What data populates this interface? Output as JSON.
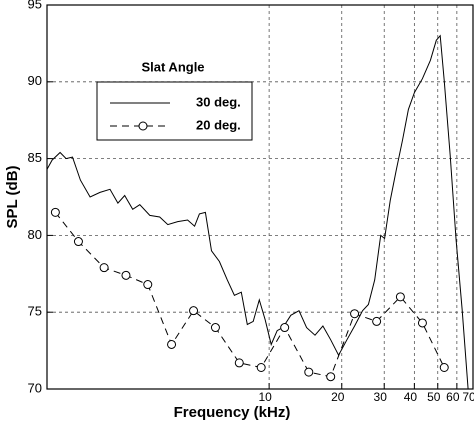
{
  "chart_data": {
    "type": "line",
    "xlabel": "Frequency (kHz)",
    "ylabel": "SPL (dB)",
    "legend_title": "Slat Angle",
    "xscale": "log",
    "grid": true,
    "legend_position": "upper left",
    "xlim": [
      1.2,
      70
    ],
    "xticks": [
      10,
      20,
      30,
      40,
      50,
      60,
      70
    ],
    "ylim": [
      70,
      95
    ],
    "yticks": [
      70,
      75,
      80,
      85,
      90,
      95
    ],
    "series": [
      {
        "name": "30 deg.",
        "color": "#000000",
        "style": "solid",
        "x": [
          1.2,
          1.26,
          1.36,
          1.44,
          1.53,
          1.65,
          1.81,
          1.99,
          2.19,
          2.36,
          2.52,
          2.72,
          2.91,
          3.2,
          3.52,
          3.8,
          4.18,
          4.59,
          4.91,
          5.14,
          5.44,
          5.77,
          6.22,
          6.71,
          7.18,
          7.67,
          8.12,
          8.59,
          9.1,
          9.63,
          10.2,
          10.8,
          11.4,
          12.3,
          13.3,
          14.3,
          15.5,
          16.7,
          18.0,
          19.4,
          21.0,
          22.6,
          24.4,
          25.8,
          27.4,
          29.0,
          30.1,
          31.8,
          33.7,
          35.7,
          37.8,
          40.0,
          43.2,
          46.6,
          49.3,
          51.2,
          53.2,
          56.3,
          59.6,
          63.1,
          66.8
        ],
        "values": [
          84.3,
          84.9,
          85.4,
          85.0,
          85.1,
          83.6,
          82.5,
          82.8,
          83.0,
          82.1,
          82.6,
          81.7,
          82.0,
          81.3,
          81.2,
          80.7,
          80.9,
          81.0,
          80.6,
          81.4,
          81.5,
          79.0,
          78.3,
          77.1,
          76.1,
          76.3,
          74.2,
          74.4,
          75.8,
          74.5,
          72.9,
          73.8,
          74.0,
          74.8,
          75.1,
          74.0,
          73.5,
          74.1,
          73.2,
          72.2,
          73.2,
          74.1,
          75.1,
          75.5,
          77.1,
          80.0,
          79.8,
          82.3,
          84.3,
          86.2,
          88.2,
          89.3,
          90.2,
          91.4,
          92.7,
          93.0,
          90.1,
          85.2,
          79.7,
          75.2,
          70.0
        ]
      },
      {
        "name": "20 deg.",
        "color": "#000000",
        "style": "dashed",
        "marker": "circle",
        "x": [
          1.3,
          1.62,
          2.07,
          2.55,
          3.14,
          3.94,
          4.86,
          5.99,
          7.52,
          9.27,
          11.6,
          14.6,
          18.0,
          22.6,
          27.9,
          35.0,
          43.2,
          53.2
        ],
        "values": [
          81.5,
          79.6,
          77.9,
          77.4,
          76.8,
          72.9,
          75.1,
          74.0,
          71.7,
          71.4,
          74.0,
          71.1,
          70.8,
          74.9,
          74.4,
          76.0,
          74.3,
          71.4
        ]
      }
    ]
  }
}
